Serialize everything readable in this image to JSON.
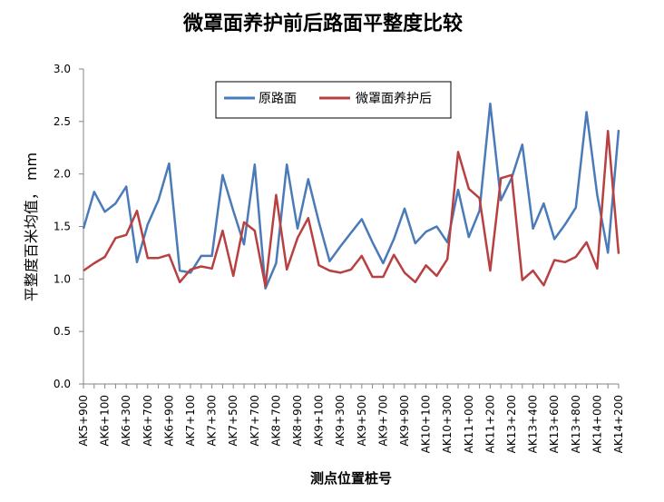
{
  "chart_data": {
    "type": "line",
    "title": "微罩面养护前后路面平整度比较",
    "xlabel": "测点位置桩号",
    "ylabel": "平整度百米均值， mm",
    "ylim": [
      0,
      3
    ],
    "yticks": [
      "0.0",
      "0.5",
      "1.0",
      "1.5",
      "2.0",
      "2.5",
      "3.0"
    ],
    "grid": false,
    "legend_position": "top-center",
    "x_tick_labels": [
      "AK5+900",
      "AK6+100",
      "AK6+300",
      "AK6+700",
      "AK6+900",
      "AK7+100",
      "AK7+300",
      "AK7+500",
      "AK7+700",
      "AK8+700",
      "AK8+900",
      "AK9+100",
      "AK9+300",
      "AK9+500",
      "AK9+700",
      "AK9+900",
      "AK10+100",
      "AK10+300",
      "AK11+000",
      "AK11+200",
      "AK13+200",
      "AK13+400",
      "AK13+600",
      "AK13+800",
      "AK14+000",
      "AK14+200"
    ],
    "series": [
      {
        "name": "原路面",
        "color": "#4a7ab8",
        "values": [
          1.48,
          1.83,
          1.64,
          1.72,
          1.88,
          1.16,
          1.52,
          1.75,
          2.1,
          1.08,
          1.06,
          1.22,
          1.22,
          1.99,
          1.65,
          1.33,
          2.09,
          0.91,
          1.15,
          2.09,
          1.48,
          1.95,
          1.54,
          1.17,
          1.31,
          1.44,
          1.57,
          1.35,
          1.15,
          1.38,
          1.67,
          1.34,
          1.45,
          1.5,
          1.35,
          1.85,
          1.4,
          1.65,
          2.67,
          1.75,
          1.96,
          2.28,
          1.48,
          1.72,
          1.38,
          1.52,
          1.68,
          2.59,
          1.8,
          1.25,
          2.42
        ]
      },
      {
        "name": "微罩面养护后",
        "color": "#b84040",
        "values": [
          1.08,
          1.15,
          1.21,
          1.39,
          1.42,
          1.65,
          1.2,
          1.2,
          1.23,
          0.97,
          1.09,
          1.12,
          1.1,
          1.46,
          1.03,
          1.54,
          1.46,
          0.93,
          1.8,
          1.09,
          1.39,
          1.58,
          1.13,
          1.08,
          1.06,
          1.09,
          1.22,
          1.02,
          1.02,
          1.23,
          1.06,
          0.97,
          1.13,
          1.03,
          1.19,
          2.21,
          1.86,
          1.77,
          1.08,
          1.96,
          1.99,
          0.99,
          1.08,
          0.94,
          1.18,
          1.16,
          1.21,
          1.35,
          1.1,
          2.41,
          1.24
        ]
      }
    ]
  }
}
